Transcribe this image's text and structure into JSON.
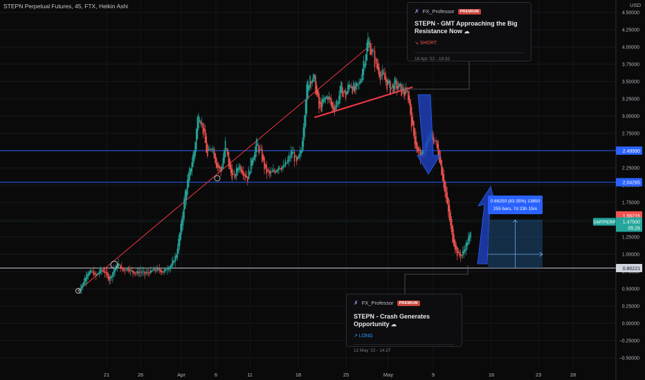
{
  "header": {
    "title": "STEPN Perpetual Futures, 45, FTX, Heikin Ashi",
    "currency": "USD"
  },
  "ideas": [
    {
      "author": "FX_Professor",
      "badge": "PREMIUM",
      "title": "STEPN - GMT Approaching the Big Resistance Now",
      "direction": "↘ SHORT",
      "direction_color": "#ef5350",
      "timestamp": "18 Apr '22 - 19:32"
    },
    {
      "author": "FX_Professor",
      "badge": "PREMIUM",
      "title": "STEPN - Crash Generates Opportunity",
      "direction": "↗ LONG",
      "direction_color": "#2f9bff",
      "timestamp": "12 May '22 - 14:27"
    }
  ],
  "chart_data": {
    "type": "candlestick",
    "style": "Heikin Ashi",
    "x_tick_labels": [
      "21",
      "26",
      "Apr",
      "6",
      "11",
      "18",
      "25",
      "May",
      "9",
      "16",
      "23",
      "28"
    ],
    "y_tick_labels": [
      "4.50000",
      "4.25000",
      "4.00000",
      "3.75000",
      "3.50000",
      "3.25000",
      "3.00000",
      "2.75000",
      "2.50000",
      "2.25000",
      "2.00000",
      "1.75000",
      "1.50000",
      "1.25000",
      "1.00000",
      "0.75000",
      "0.50000",
      "0.25000",
      "0.00000",
      "−0.25000",
      "−0.50000"
    ],
    "y_tick_values": [
      4.5,
      4.25,
      4.0,
      3.75,
      3.5,
      3.25,
      3.0,
      2.75,
      2.5,
      2.25,
      2.0,
      1.75,
      1.5,
      1.25,
      1.0,
      0.75,
      0.5,
      0.25,
      0.0,
      -0.25,
      -0.5
    ],
    "ylim": [
      -0.55,
      4.6
    ],
    "grid": true,
    "colors": {
      "up": "#26a69a",
      "down": "#ef5350",
      "level": "#2962ff",
      "trend": "#f23645",
      "support": "#d1d4dc"
    },
    "price_path": [
      0.47,
      0.57,
      0.73,
      0.75,
      0.68,
      0.78,
      0.74,
      0.63,
      0.78,
      0.86,
      0.76,
      0.8,
      0.75,
      0.73,
      0.75,
      0.72,
      0.74,
      0.77,
      0.78,
      0.74,
      0.8,
      0.85,
      1.0,
      1.4,
      1.9,
      2.2,
      2.5,
      3.1,
      2.8,
      2.4,
      2.6,
      2.3,
      2.2,
      2.6,
      2.2,
      2.1,
      2.3,
      2.2,
      2.1,
      2.4,
      2.6,
      2.45,
      2.2,
      2.15,
      2.2,
      2.3,
      2.25,
      2.35,
      2.5,
      2.3,
      2.5,
      3.3,
      3.6,
      3.5,
      3.1,
      3.2,
      3.3,
      3.1,
      3.2,
      3.4,
      3.3,
      3.5,
      3.35,
      3.45,
      3.8,
      4.1,
      3.9,
      3.7,
      3.6,
      3.5,
      3.4,
      3.45,
      3.4,
      3.35,
      3.3,
      2.8,
      2.5,
      2.4,
      2.6,
      2.7,
      2.65,
      2.4,
      2.0,
      1.6,
      1.2,
      1.0,
      0.98,
      1.15,
      1.3
    ],
    "price_lines": [
      {
        "value": 2.4999,
        "label": "2.49990",
        "color": "#2962ff"
      },
      {
        "value": 2.04265,
        "label": "2.04265",
        "color": "#2962ff"
      },
      {
        "value": 0.8,
        "label": "0.80221",
        "color": "#d1d4dc"
      }
    ],
    "current_price": {
      "value": 1.475,
      "label": "1.47500",
      "symbol": "GMTPERP",
      "countdown": "05:26",
      "color": "#26a69a"
    },
    "high_marker": {
      "value": 1.562,
      "label": "1.56215",
      "color": "#ef5350"
    },
    "trend_lines": [
      {
        "from": [
          0,
          0.47
        ],
        "to": [
          66,
          4.05
        ]
      },
      {
        "from": [
          53,
          2.98
        ],
        "to": [
          75,
          3.42
        ]
      }
    ],
    "projection": {
      "tooltip_line1": "0.69250 (83.35%) 13850",
      "tooltip_line2": "255 bars, 7d 23h 15m",
      "from_value": 0.8,
      "to_value": 1.5
    }
  }
}
